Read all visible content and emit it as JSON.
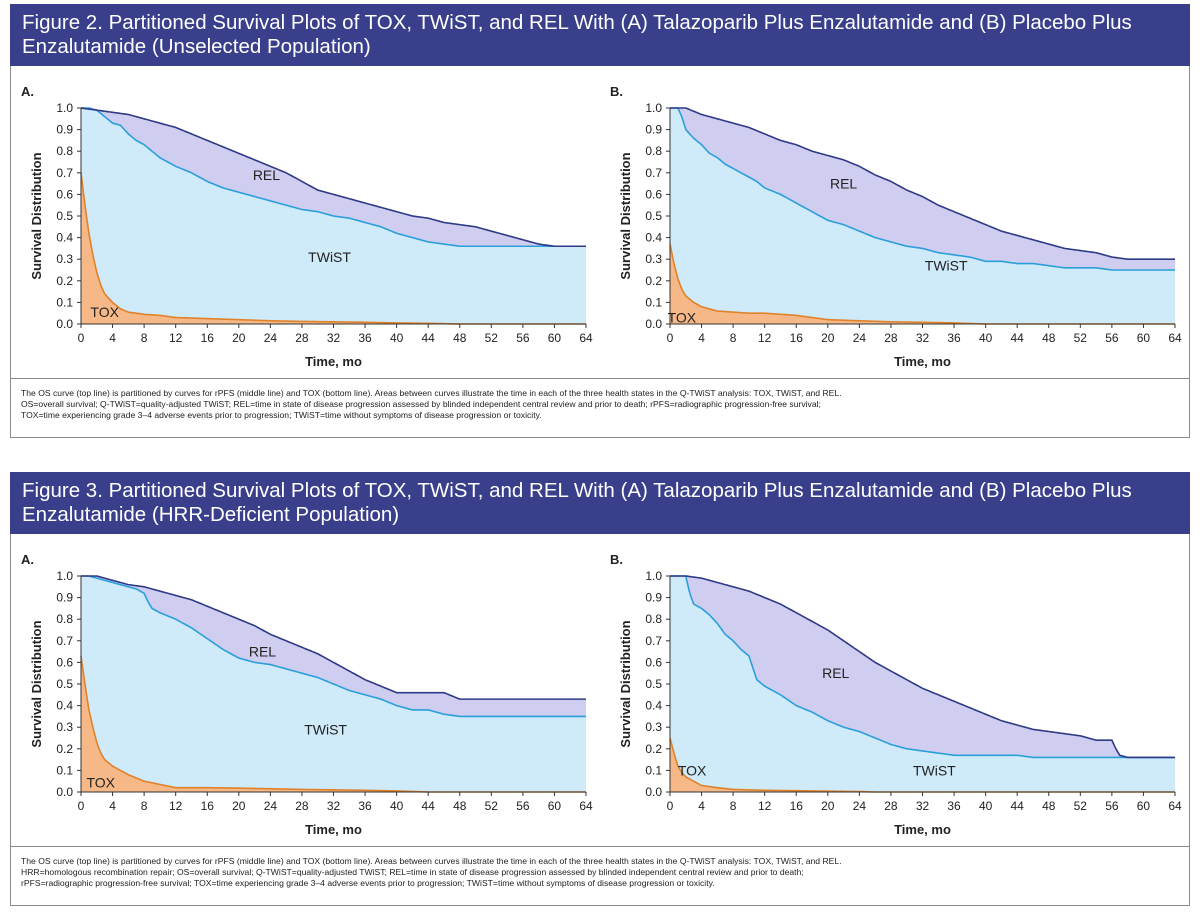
{
  "figures": [
    {
      "title": "Figure 2. Partitioned Survival Plots of TOX, TWiST, and REL With (A) Talazoparib Plus Enzalutamide and (B) Placebo Plus Enzalutamide (Unselected Population)",
      "footnote": [
        "The OS curve (top line) is partitioned by curves for rPFS (middle line) and TOX (bottom line). Areas between curves illustrate the time in each of the three health states in the Q-TWiST analysis: TOX, TWiST, and REL.",
        "OS=overall survival; Q-TWiST=quality-adjusted TWiST; REL=time in state of disease progression assessed by blinded independent central review and prior to death; rPFS=radiographic progression-free survival;",
        "TOX=time experiencing grade 3–4 adverse events prior to progression; TWiST=time without symptoms of disease progression or toxicity."
      ]
    },
    {
      "title": "Figure 3. Partitioned Survival Plots of TOX, TWiST, and REL With (A) Talazoparib Plus Enzalutamide and (B) Placebo Plus Enzalutamide (HRR-Deficient Population)",
      "footnote": [
        "The OS curve (top line) is partitioned by curves for rPFS (middle line) and TOX (bottom line). Areas between curves illustrate the time in each of the three health states in the Q-TWiST analysis: TOX, TWiST, and REL.",
        "HRR=homologous recombination repair; OS=overall survival; Q-TWiST=quality-adjusted TWiST; REL=time in state of disease progression assessed by blinded independent central review and prior to death;",
        "rPFS=radiographic progression-free survival; TOX=time experiencing grade 3–4 adverse events prior to progression; TWiST=time without symptoms of disease progression or toxicity."
      ]
    }
  ],
  "colors": {
    "header": "#3a3f8c",
    "os_line": "#2e3a86",
    "rpfs_line": "#2b9fd9",
    "tox_line": "#e0822a",
    "rel_fill": "#cfcdf0",
    "twist_fill": "#cfeaf9",
    "tox_fill": "#f6b887"
  },
  "chart_data": [
    {
      "type": "area",
      "panel": "A.",
      "xlabel": "Time, mo",
      "ylabel": "Survival Distribution",
      "xlim": [
        0,
        64
      ],
      "ylim": [
        0,
        1
      ],
      "xticks": [
        0,
        4,
        8,
        12,
        16,
        20,
        24,
        28,
        32,
        36,
        40,
        44,
        48,
        52,
        56,
        60,
        64
      ],
      "yticks": [
        0.0,
        0.1,
        0.2,
        0.3,
        0.4,
        0.5,
        0.6,
        0.7,
        0.8,
        0.9,
        1.0
      ],
      "region_labels": [
        {
          "text": "REL",
          "x": 23.5,
          "y": 0.69
        },
        {
          "text": "TWiST",
          "x": 31.5,
          "y": 0.31
        },
        {
          "text": "TOX",
          "x": 3,
          "y": 0.055
        }
      ],
      "series": [
        {
          "name": "OS",
          "x": [
            0,
            2,
            4,
            6,
            8,
            10,
            12,
            14,
            16,
            18,
            20,
            22,
            24,
            26,
            28,
            30,
            32,
            34,
            36,
            38,
            40,
            42,
            44,
            46,
            48,
            50,
            52,
            54,
            56,
            58,
            60,
            64
          ],
          "y": [
            1.0,
            0.99,
            0.98,
            0.97,
            0.95,
            0.93,
            0.91,
            0.88,
            0.85,
            0.82,
            0.79,
            0.76,
            0.73,
            0.7,
            0.66,
            0.62,
            0.6,
            0.58,
            0.56,
            0.54,
            0.52,
            0.5,
            0.49,
            0.47,
            0.46,
            0.45,
            0.43,
            0.41,
            0.39,
            0.37,
            0.36,
            0.36
          ]
        },
        {
          "name": "rPFS",
          "x": [
            0,
            1,
            2,
            3,
            4,
            5,
            6,
            7,
            8,
            9,
            10,
            12,
            14,
            16,
            18,
            20,
            22,
            24,
            26,
            28,
            30,
            32,
            34,
            36,
            38,
            40,
            42,
            44,
            46,
            48,
            50,
            52,
            54,
            56,
            58,
            60,
            64
          ],
          "y": [
            1.0,
            1.0,
            0.99,
            0.96,
            0.93,
            0.92,
            0.88,
            0.85,
            0.83,
            0.8,
            0.77,
            0.73,
            0.7,
            0.66,
            0.63,
            0.61,
            0.59,
            0.57,
            0.55,
            0.53,
            0.52,
            0.5,
            0.49,
            0.47,
            0.45,
            0.42,
            0.4,
            0.38,
            0.37,
            0.36,
            0.36,
            0.36,
            0.36,
            0.36,
            0.36,
            0.36,
            0.36
          ]
        },
        {
          "name": "TOX",
          "x": [
            0,
            0.5,
            1,
            1.5,
            2,
            2.5,
            3,
            4,
            5,
            6,
            8,
            10,
            12,
            16,
            20,
            24,
            28,
            32,
            36,
            40,
            44,
            48
          ],
          "y": [
            0.7,
            0.55,
            0.42,
            0.32,
            0.24,
            0.18,
            0.14,
            0.1,
            0.07,
            0.055,
            0.045,
            0.04,
            0.03,
            0.025,
            0.02,
            0.015,
            0.012,
            0.01,
            0.008,
            0.005,
            0.003,
            0.0
          ]
        }
      ]
    },
    {
      "type": "area",
      "panel": "B.",
      "xlabel": "Time, mo",
      "ylabel": "Survival Distribution",
      "xlim": [
        0,
        64
      ],
      "ylim": [
        0,
        1
      ],
      "xticks": [
        0,
        4,
        8,
        12,
        16,
        20,
        24,
        28,
        32,
        36,
        40,
        44,
        48,
        52,
        56,
        60,
        64
      ],
      "yticks": [
        0.0,
        0.1,
        0.2,
        0.3,
        0.4,
        0.5,
        0.6,
        0.7,
        0.8,
        0.9,
        1.0
      ],
      "region_labels": [
        {
          "text": "REL",
          "x": 22,
          "y": 0.65
        },
        {
          "text": "TWiST",
          "x": 35,
          "y": 0.27
        },
        {
          "text": "TOX",
          "x": 1.5,
          "y": 0.03
        }
      ],
      "series": [
        {
          "name": "OS",
          "x": [
            0,
            2,
            4,
            6,
            8,
            10,
            12,
            14,
            16,
            18,
            20,
            22,
            24,
            26,
            28,
            30,
            32,
            34,
            36,
            38,
            40,
            42,
            44,
            46,
            48,
            50,
            52,
            54,
            56,
            58,
            60,
            64
          ],
          "y": [
            1.0,
            1.0,
            0.97,
            0.95,
            0.93,
            0.91,
            0.88,
            0.85,
            0.83,
            0.8,
            0.78,
            0.76,
            0.73,
            0.69,
            0.66,
            0.62,
            0.59,
            0.55,
            0.52,
            0.49,
            0.46,
            0.43,
            0.41,
            0.39,
            0.37,
            0.35,
            0.34,
            0.33,
            0.31,
            0.3,
            0.3,
            0.3
          ]
        },
        {
          "name": "rPFS",
          "x": [
            0,
            1,
            1.5,
            2,
            3,
            4,
            5,
            6,
            7,
            8,
            9,
            10,
            11,
            12,
            14,
            16,
            18,
            20,
            22,
            24,
            26,
            28,
            30,
            32,
            34,
            36,
            38,
            40,
            42,
            44,
            46,
            48,
            50,
            52,
            54,
            56,
            58,
            60,
            64
          ],
          "y": [
            1.0,
            1.0,
            0.96,
            0.9,
            0.86,
            0.83,
            0.79,
            0.77,
            0.74,
            0.72,
            0.7,
            0.68,
            0.66,
            0.63,
            0.6,
            0.56,
            0.52,
            0.48,
            0.46,
            0.43,
            0.4,
            0.38,
            0.36,
            0.35,
            0.33,
            0.32,
            0.31,
            0.29,
            0.29,
            0.28,
            0.28,
            0.27,
            0.26,
            0.26,
            0.26,
            0.25,
            0.25,
            0.25,
            0.25
          ]
        },
        {
          "name": "TOX",
          "x": [
            0,
            0.5,
            1,
            1.5,
            2,
            3,
            4,
            5,
            6,
            8,
            10,
            12,
            14,
            16,
            18,
            20,
            24,
            28,
            32,
            36,
            40
          ],
          "y": [
            0.37,
            0.28,
            0.21,
            0.16,
            0.13,
            0.1,
            0.08,
            0.07,
            0.06,
            0.055,
            0.05,
            0.05,
            0.045,
            0.04,
            0.03,
            0.02,
            0.015,
            0.01,
            0.008,
            0.005,
            0.0
          ]
        }
      ]
    },
    {
      "type": "area",
      "panel": "A.",
      "xlabel": "Time, mo",
      "ylabel": "Survival Distribution",
      "xlim": [
        0,
        64
      ],
      "ylim": [
        0,
        1
      ],
      "xticks": [
        0,
        4,
        8,
        12,
        16,
        20,
        24,
        28,
        32,
        36,
        40,
        44,
        48,
        52,
        56,
        60,
        64
      ],
      "yticks": [
        0.0,
        0.1,
        0.2,
        0.3,
        0.4,
        0.5,
        0.6,
        0.7,
        0.8,
        0.9,
        1.0
      ],
      "region_labels": [
        {
          "text": "REL",
          "x": 23,
          "y": 0.65
        },
        {
          "text": "TWiST",
          "x": 31,
          "y": 0.29
        },
        {
          "text": "TOX",
          "x": 2.5,
          "y": 0.045
        }
      ],
      "series": [
        {
          "name": "OS",
          "x": [
            0,
            2,
            4,
            6,
            8,
            10,
            12,
            14,
            16,
            18,
            20,
            22,
            24,
            26,
            28,
            30,
            32,
            34,
            36,
            38,
            40,
            42,
            44,
            46,
            48,
            50,
            52,
            54,
            56,
            58,
            60,
            64
          ],
          "y": [
            1.0,
            1.0,
            0.98,
            0.96,
            0.95,
            0.93,
            0.91,
            0.89,
            0.86,
            0.83,
            0.8,
            0.77,
            0.73,
            0.7,
            0.67,
            0.64,
            0.6,
            0.56,
            0.52,
            0.49,
            0.46,
            0.46,
            0.46,
            0.46,
            0.43,
            0.43,
            0.43,
            0.43,
            0.43,
            0.43,
            0.43,
            0.43
          ]
        },
        {
          "name": "rPFS",
          "x": [
            0,
            1,
            2,
            3,
            4,
            5,
            6,
            7,
            8,
            8.5,
            9,
            10,
            12,
            14,
            16,
            18,
            20,
            22,
            24,
            26,
            28,
            30,
            32,
            34,
            36,
            38,
            40,
            42,
            44,
            46,
            48,
            50,
            52,
            54,
            56,
            58,
            60,
            64
          ],
          "y": [
            1.0,
            1.0,
            0.99,
            0.98,
            0.97,
            0.96,
            0.95,
            0.94,
            0.92,
            0.88,
            0.85,
            0.83,
            0.8,
            0.76,
            0.71,
            0.66,
            0.62,
            0.6,
            0.59,
            0.57,
            0.55,
            0.53,
            0.5,
            0.47,
            0.45,
            0.43,
            0.4,
            0.38,
            0.38,
            0.36,
            0.35,
            0.35,
            0.35,
            0.35,
            0.35,
            0.35,
            0.35,
            0.35
          ]
        },
        {
          "name": "TOX",
          "x": [
            0,
            0.5,
            1,
            1.5,
            2,
            2.5,
            3,
            4,
            5,
            6,
            8,
            10,
            12,
            16,
            20,
            24,
            28,
            32,
            36,
            40,
            44
          ],
          "y": [
            0.63,
            0.5,
            0.38,
            0.3,
            0.23,
            0.18,
            0.15,
            0.12,
            0.1,
            0.08,
            0.05,
            0.035,
            0.02,
            0.02,
            0.018,
            0.015,
            0.012,
            0.01,
            0.008,
            0.005,
            0.0
          ]
        }
      ]
    },
    {
      "type": "area",
      "panel": "B.",
      "xlabel": "Time, mo",
      "ylabel": "Survival Distribution",
      "xlim": [
        0,
        64
      ],
      "ylim": [
        0,
        1
      ],
      "xticks": [
        0,
        4,
        8,
        12,
        16,
        20,
        24,
        28,
        32,
        36,
        40,
        44,
        48,
        52,
        56,
        60,
        64
      ],
      "yticks": [
        0.0,
        0.1,
        0.2,
        0.3,
        0.4,
        0.5,
        0.6,
        0.7,
        0.8,
        0.9,
        1.0
      ],
      "region_labels": [
        {
          "text": "REL",
          "x": 21,
          "y": 0.55
        },
        {
          "text": "TWiST",
          "x": 33.5,
          "y": 0.1
        },
        {
          "text": "TOX",
          "x": 2.8,
          "y": 0.1
        }
      ],
      "series": [
        {
          "name": "OS",
          "x": [
            0,
            2,
            4,
            6,
            8,
            10,
            12,
            14,
            16,
            18,
            20,
            22,
            24,
            26,
            28,
            30,
            32,
            34,
            36,
            38,
            40,
            42,
            44,
            46,
            48,
            50,
            52,
            54,
            56,
            56.5,
            57,
            58,
            60,
            64
          ],
          "y": [
            1.0,
            1.0,
            0.99,
            0.97,
            0.95,
            0.93,
            0.9,
            0.87,
            0.83,
            0.79,
            0.75,
            0.7,
            0.65,
            0.6,
            0.56,
            0.52,
            0.48,
            0.45,
            0.42,
            0.39,
            0.36,
            0.33,
            0.31,
            0.29,
            0.28,
            0.27,
            0.26,
            0.24,
            0.24,
            0.2,
            0.17,
            0.16,
            0.16,
            0.16
          ]
        },
        {
          "name": "rPFS",
          "x": [
            0,
            2,
            2.5,
            3,
            4,
            5,
            6,
            7,
            8,
            9,
            10,
            11,
            12,
            14,
            16,
            18,
            20,
            22,
            24,
            26,
            28,
            30,
            32,
            34,
            36,
            38,
            40,
            42,
            44,
            46,
            48,
            50,
            52,
            54,
            56,
            58,
            60,
            64
          ],
          "y": [
            1.0,
            1.0,
            0.92,
            0.87,
            0.85,
            0.82,
            0.78,
            0.73,
            0.7,
            0.66,
            0.63,
            0.52,
            0.49,
            0.45,
            0.4,
            0.37,
            0.33,
            0.3,
            0.28,
            0.25,
            0.22,
            0.2,
            0.19,
            0.18,
            0.17,
            0.17,
            0.17,
            0.17,
            0.17,
            0.16,
            0.16,
            0.16,
            0.16,
            0.16,
            0.16,
            0.16,
            0.16,
            0.16
          ]
        },
        {
          "name": "TOX",
          "x": [
            0,
            0.5,
            1,
            1.5,
            2,
            3,
            4,
            6,
            8,
            10,
            12,
            16,
            20,
            24,
            26
          ],
          "y": [
            0.25,
            0.18,
            0.12,
            0.09,
            0.07,
            0.05,
            0.03,
            0.02,
            0.012,
            0.01,
            0.008,
            0.006,
            0.004,
            0.002,
            0.0
          ]
        }
      ]
    }
  ]
}
